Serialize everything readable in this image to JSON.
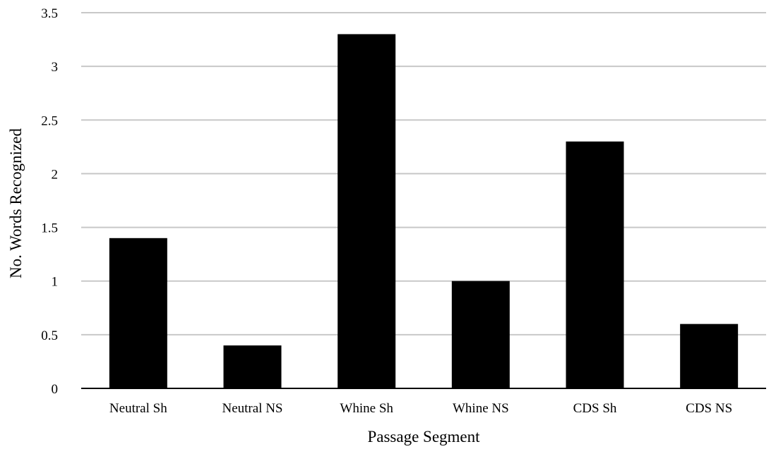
{
  "chart_data": {
    "type": "bar",
    "categories": [
      "Neutral Sh",
      "Neutral NS",
      "Whine Sh",
      "Whine NS",
      "CDS Sh",
      "CDS NS"
    ],
    "values": [
      1.4,
      0.4,
      3.3,
      1.0,
      2.3,
      0.6
    ],
    "xlabel": "Passage Segment",
    "ylabel": "No. Words Recognized",
    "ylim": [
      0,
      3.5
    ],
    "yticks": [
      "0",
      "0.5",
      "1",
      "1.5",
      "2",
      "2.5",
      "3",
      "3.5"
    ],
    "grid": true,
    "legend": "none",
    "bar_color": "#000000",
    "grid_color": "#c8c8c8"
  }
}
